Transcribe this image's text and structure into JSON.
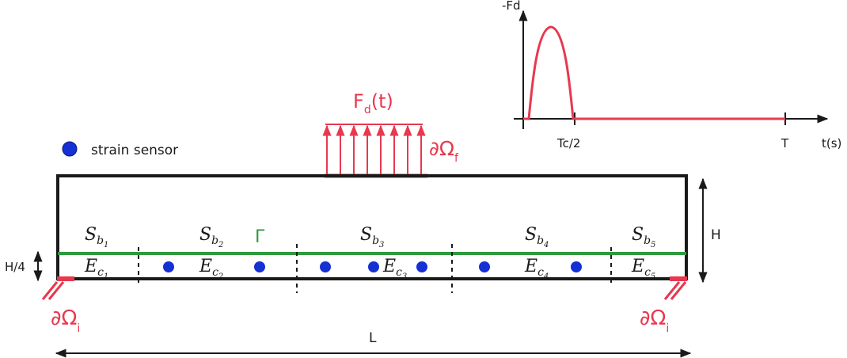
{
  "colors": {
    "beam": "#1a1a1a",
    "load": "#e8384f",
    "interface": "#2e9b3c",
    "sensor": "#1530d4",
    "text": "#1a1a1a"
  },
  "legend": {
    "sensor_label": "strain sensor"
  },
  "load": {
    "label_main": "F",
    "label_sub": "d",
    "label_tail": "(t)",
    "boundary_main": "∂Ω",
    "boundary_sub": "f"
  },
  "supports": {
    "left_main": "∂Ω",
    "left_sub": "i",
    "right_main": "∂Ω",
    "right_sub": "i"
  },
  "interface_label": "Γ",
  "dimensions": {
    "height": "H",
    "quarter_height": "H/4",
    "length": "L"
  },
  "segments": [
    {
      "s_main": "S",
      "s_sub": "b",
      "s_index": "1",
      "e_main": "E",
      "e_sub": "c",
      "e_index": "1"
    },
    {
      "s_main": "S",
      "s_sub": "b",
      "s_index": "2",
      "e_main": "E",
      "e_sub": "c",
      "e_index": "2"
    },
    {
      "s_main": "S",
      "s_sub": "b",
      "s_index": "3",
      "e_main": "E",
      "e_sub": "c",
      "e_index": "3"
    },
    {
      "s_main": "S",
      "s_sub": "b",
      "s_index": "4",
      "e_main": "E",
      "e_sub": "c",
      "e_index": "4"
    },
    {
      "s_main": "S",
      "s_sub": "b",
      "s_index": "5",
      "e_main": "E",
      "e_sub": "c",
      "e_index": "5"
    }
  ],
  "load_chart": {
    "y_label": "-Fd",
    "x_label": "t(s)",
    "ticks": [
      "Tc/2",
      "T"
    ]
  }
}
